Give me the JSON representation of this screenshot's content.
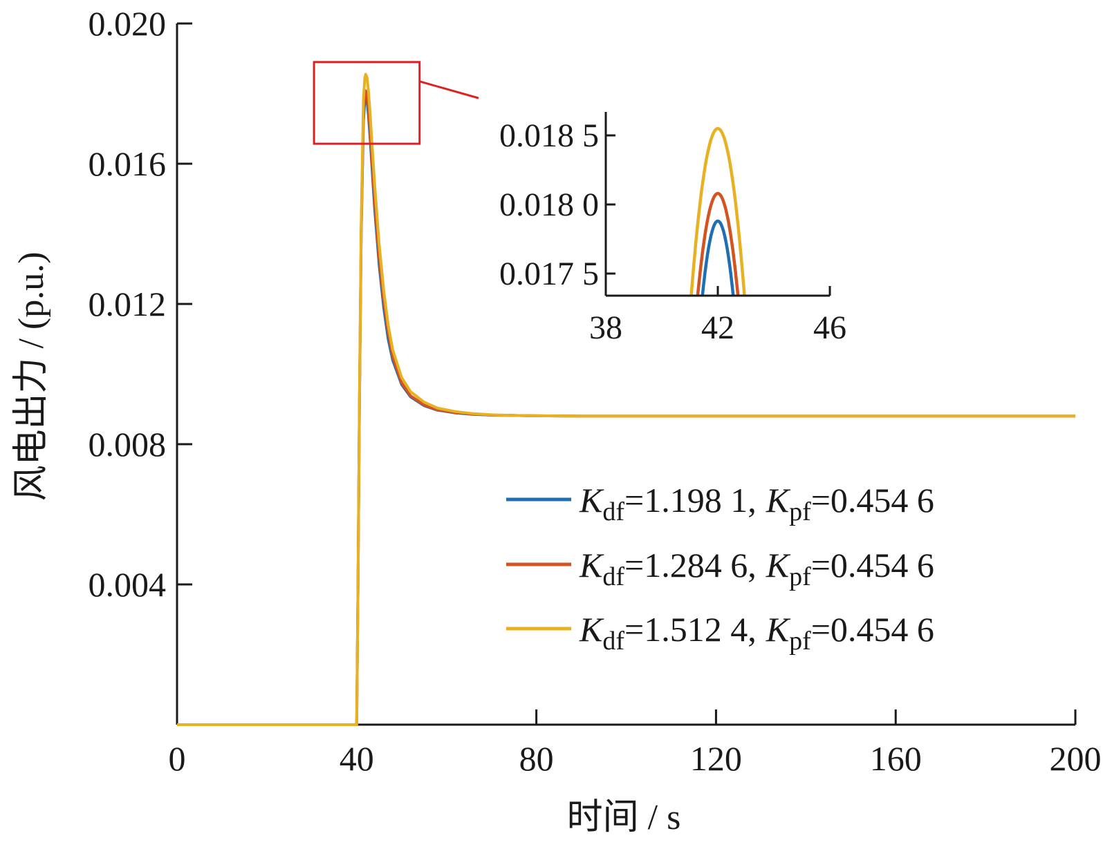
{
  "chart_data": {
    "type": "line",
    "xlabel": "时间 / s",
    "ylabel": "风电出力 / (p.u.)",
    "xlim": [
      0,
      200
    ],
    "ylim": [
      0,
      0.02
    ],
    "x_ticks": [
      "0",
      "40",
      "80",
      "120",
      "160",
      "200"
    ],
    "y_ticks": [
      "0.004",
      "0.008",
      "0.012",
      "0.016",
      "0.020"
    ],
    "grid": false,
    "legend_position": "right",
    "series": [
      {
        "name": "K_df=1.198 1, K_pf=0.454 6",
        "legend": {
          "k": "K",
          "k_sub": "df",
          "k_val": "=1.198 1,",
          "p": "K",
          "p_sub": "pf",
          "p_val": "=0.454 6"
        },
        "color": "#1f6fb2",
        "x": [
          0,
          40,
          40.3,
          40.6,
          41,
          41.5,
          41.8,
          42,
          42.3,
          42.6,
          43,
          43.5,
          44,
          45,
          46,
          47,
          48,
          50,
          52,
          55,
          58,
          62,
          66,
          70,
          75,
          80,
          90,
          100,
          120,
          150,
          200
        ],
        "y": [
          0,
          0,
          0.004,
          0.009,
          0.014,
          0.0172,
          0.0178,
          0.01788,
          0.0178,
          0.0174,
          0.0167,
          0.0157,
          0.0147,
          0.0131,
          0.0119,
          0.011,
          0.0104,
          0.0097,
          0.00935,
          0.0091,
          0.00897,
          0.00889,
          0.00885,
          0.00883,
          0.00882,
          0.00881,
          0.0088,
          0.0088,
          0.0088,
          0.0088,
          0.0088
        ]
      },
      {
        "name": "K_df=1.284 6, K_pf=0.454 6",
        "legend": {
          "k": "K",
          "k_sub": "df",
          "k_val": "=1.284 6,",
          "p": "K",
          "p_sub": "pf",
          "p_val": "=0.454 6"
        },
        "color": "#d35420",
        "x": [
          0,
          40,
          40.3,
          40.6,
          41,
          41.5,
          41.8,
          42,
          42.3,
          42.6,
          43,
          43.5,
          44,
          45,
          46,
          47,
          48,
          50,
          52,
          55,
          58,
          62,
          66,
          70,
          75,
          80,
          90,
          100,
          120,
          150,
          200
        ],
        "y": [
          0,
          0,
          0.004,
          0.009,
          0.0141,
          0.0174,
          0.018,
          0.01808,
          0.018,
          0.0176,
          0.0169,
          0.0159,
          0.0149,
          0.0133,
          0.0121,
          0.0112,
          0.0105,
          0.00975,
          0.00938,
          0.00912,
          0.00898,
          0.0089,
          0.00886,
          0.00883,
          0.00882,
          0.00881,
          0.0088,
          0.0088,
          0.0088,
          0.0088,
          0.0088
        ]
      },
      {
        "name": "K_df=1.512 4, K_pf=0.454 6",
        "legend": {
          "k": "K",
          "k_sub": "df",
          "k_val": "=1.512 4,",
          "p": "K",
          "p_sub": "pf",
          "p_val": "=0.454 6"
        },
        "color": "#e8b122",
        "x": [
          0,
          40,
          40.3,
          40.6,
          41,
          41.5,
          41.8,
          42,
          42.3,
          42.6,
          43,
          43.5,
          44,
          45,
          46,
          47,
          48,
          50,
          52,
          55,
          58,
          62,
          66,
          70,
          75,
          80,
          90,
          100,
          120,
          150,
          200
        ],
        "y": [
          0,
          0,
          0.004,
          0.0092,
          0.0143,
          0.0178,
          0.01845,
          0.01855,
          0.01846,
          0.0181,
          0.0174,
          0.0164,
          0.0154,
          0.0137,
          0.0124,
          0.0114,
          0.0107,
          0.0099,
          0.0095,
          0.0092,
          0.00903,
          0.00893,
          0.00887,
          0.00884,
          0.00882,
          0.00881,
          0.0088,
          0.0088,
          0.0088,
          0.0088,
          0.0088
        ]
      }
    ],
    "highlight_box": {
      "xlim": [
        30.5,
        54
      ],
      "ylim": [
        0.01657,
        0.0189
      ]
    },
    "inset": {
      "xlim": [
        38,
        46
      ],
      "ylim": [
        0.01734,
        0.01867
      ],
      "x_ticks": [
        "38",
        "42",
        "46"
      ],
      "y_ticks": [
        "0.017 5",
        "0.018 0",
        "0.018 5"
      ],
      "peaks": [
        {
          "center": 42,
          "halfwidth": 0.55,
          "peak": 0.01788,
          "color": "#1f6fb2"
        },
        {
          "center": 42,
          "halfwidth": 0.72,
          "peak": 0.01808,
          "color": "#d35420"
        },
        {
          "center": 42,
          "halfwidth": 0.95,
          "peak": 0.01855,
          "color": "#e8b122"
        }
      ]
    }
  }
}
